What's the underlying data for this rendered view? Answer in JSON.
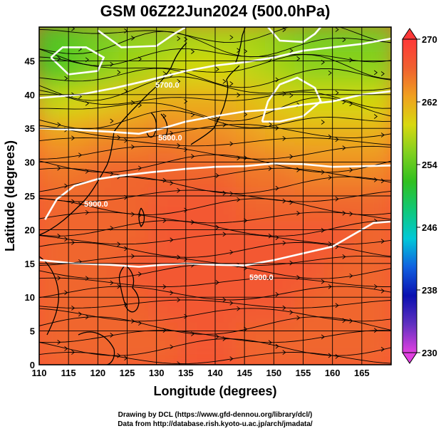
{
  "chart_data": {
    "type": "heatmap",
    "title": "GSM 06Z22Jun2024 (500.0hPa)",
    "xlabel": "Longitude (degrees)",
    "ylabel": "Latitude  (degrees)",
    "xlim": [
      110,
      170
    ],
    "ylim": [
      0,
      50
    ],
    "x_ticks": [
      "110",
      "115",
      "120",
      "125",
      "130",
      "135",
      "140",
      "145",
      "150",
      "155",
      "160",
      "165"
    ],
    "y_ticks": [
      "0",
      "5",
      "10",
      "15",
      "20",
      "25",
      "30",
      "35",
      "40",
      "45"
    ],
    "colorbar": {
      "min": 230,
      "max": 270,
      "ticks": [
        "230",
        "238",
        "246",
        "254",
        "262",
        "270"
      ],
      "colors": [
        "#e040e0",
        "#6030c0",
        "#0a10b0",
        "#1060e0",
        "#00c8d8",
        "#10c878",
        "#30c020",
        "#80d020",
        "#d8d810",
        "#f0a020",
        "#f06030",
        "#ff3838"
      ]
    },
    "temperature_field": {
      "note_cells": "rows from 50N to 0N, columns from 110E to 170E in 5-degree steps",
      "values": [
        [
          253,
          254,
          255,
          256,
          256,
          257,
          257,
          257,
          256,
          255,
          255,
          255
        ],
        [
          253,
          254,
          256,
          257,
          258,
          259,
          259,
          258,
          257,
          256,
          256,
          256
        ],
        [
          258,
          259,
          260,
          261,
          262,
          262,
          262,
          261,
          260,
          259,
          259,
          259
        ],
        [
          263,
          263,
          264,
          264,
          265,
          264,
          264,
          263,
          262,
          262,
          262,
          262
        ],
        [
          265,
          265,
          266,
          266,
          266,
          266,
          266,
          265,
          265,
          264,
          264,
          264
        ],
        [
          266,
          266,
          266,
          266,
          267,
          267,
          267,
          266,
          266,
          266,
          266,
          266
        ],
        [
          266,
          266,
          266,
          266,
          267,
          267,
          267,
          267,
          267,
          267,
          267,
          266
        ],
        [
          266,
          266,
          266,
          267,
          267,
          267,
          267,
          267,
          267,
          267,
          266,
          266
        ],
        [
          266,
          266,
          266,
          266,
          267,
          267,
          267,
          267,
          267,
          266,
          266,
          266
        ],
        [
          266,
          266,
          266,
          266,
          266,
          267,
          267,
          266,
          266,
          266,
          266,
          266
        ]
      ]
    },
    "contours": [
      {
        "label": "5700.0"
      },
      {
        "label": "5800.0"
      },
      {
        "label": "5900.0"
      },
      {
        "label": "5900.0"
      }
    ],
    "contour_lines_lonlat": [
      [
        [
          110,
          39.5
        ],
        [
          117,
          40
        ],
        [
          123,
          41
        ],
        [
          128,
          42
        ],
        [
          135,
          43.5
        ],
        [
          140,
          44.3
        ],
        [
          145,
          44.8
        ],
        [
          150,
          45.5
        ],
        [
          155,
          46.5
        ],
        [
          160,
          47
        ],
        [
          165,
          47.5
        ],
        [
          170,
          48.3
        ]
      ],
      [
        [
          110,
          35
        ],
        [
          116,
          34.8
        ],
        [
          122,
          34.5
        ],
        [
          127,
          34.2
        ],
        [
          131,
          35
        ],
        [
          135,
          36
        ],
        [
          140,
          36.8
        ],
        [
          145,
          37.5
        ],
        [
          150,
          37.8
        ],
        [
          155,
          38.5
        ],
        [
          160,
          39
        ],
        [
          165,
          40
        ],
        [
          170,
          40.5
        ]
      ],
      [
        [
          111,
          21.5
        ],
        [
          113,
          24.5
        ],
        [
          116,
          26.5
        ],
        [
          120,
          27.5
        ],
        [
          124,
          28
        ],
        [
          129,
          28.5
        ],
        [
          135,
          29
        ],
        [
          140,
          29.3
        ],
        [
          145,
          29.4
        ],
        [
          150,
          29.8
        ],
        [
          155,
          29.7
        ],
        [
          160,
          29.3
        ],
        [
          165,
          29.4
        ],
        [
          170,
          29.5
        ]
      ],
      [
        [
          110,
          15.5
        ],
        [
          116,
          15
        ],
        [
          122,
          14.8
        ],
        [
          127,
          14.5
        ],
        [
          131,
          14.8
        ],
        [
          135,
          15
        ],
        [
          140,
          14.8
        ],
        [
          145,
          14.7
        ],
        [
          150,
          15.5
        ],
        [
          155,
          16.5
        ],
        [
          160,
          17.5
        ],
        [
          164,
          19.5
        ],
        [
          167,
          21
        ],
        [
          170,
          21.2
        ]
      ],
      [
        [
          148,
          36
        ],
        [
          149,
          39
        ],
        [
          151,
          41.5
        ],
        [
          154,
          42.5
        ],
        [
          157,
          41
        ],
        [
          158,
          39
        ],
        [
          155,
          36.8
        ],
        [
          151,
          36
        ],
        [
          148,
          36
        ]
      ],
      [
        [
          120,
          49.5
        ],
        [
          124,
          47
        ],
        [
          130,
          47.2
        ],
        [
          133,
          49
        ],
        [
          135,
          50
        ]
      ],
      [
        [
          149,
          50
        ],
        [
          151,
          48
        ],
        [
          155,
          47.8
        ],
        [
          157,
          49
        ],
        [
          158,
          50
        ]
      ],
      [
        [
          112,
          45.5
        ],
        [
          115,
          43
        ],
        [
          120,
          43.5
        ],
        [
          121,
          45.5
        ],
        [
          118,
          47
        ],
        [
          114,
          47
        ],
        [
          112,
          45.5
        ]
      ]
    ],
    "grid": true,
    "legend": "colorbar-right"
  },
  "credits": {
    "line1": "Drawing by DCL (https://www.gfd-dennou.org/library/dcl/)",
    "line2": "Data from http://database.rish.kyoto-u.ac.jp/arch/jmadata/"
  }
}
